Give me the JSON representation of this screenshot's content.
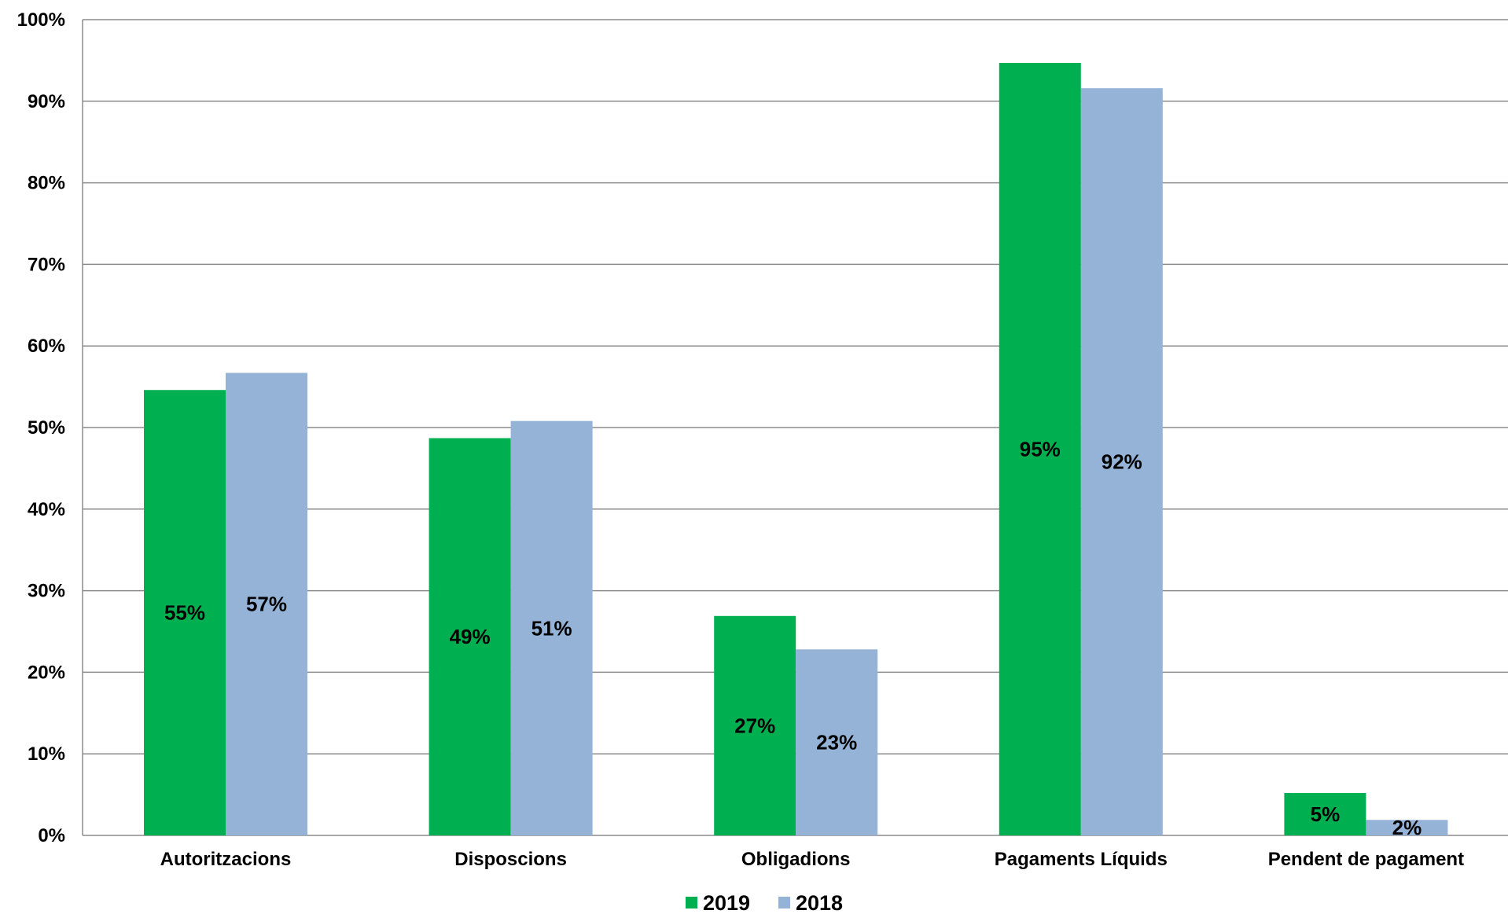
{
  "chart_data": {
    "type": "bar",
    "title": "",
    "xlabel": "",
    "ylabel": "",
    "categories": [
      "Autoritzacions",
      "Disposcions",
      "Obligadions",
      "Pagaments Líquids",
      "Pendent de pagament"
    ],
    "series": [
      {
        "name": "2019",
        "color": "#00b050",
        "values": [
          54.6,
          48.7,
          26.9,
          94.7,
          5.2
        ],
        "labels": [
          "55%",
          "49%",
          "27%",
          "95%",
          "5%"
        ]
      },
      {
        "name": "2018",
        "color": "#95b3d7",
        "values": [
          56.7,
          50.8,
          22.8,
          91.6,
          1.9
        ],
        "labels": [
          "57%",
          "51%",
          "23%",
          "92%",
          "2%"
        ]
      }
    ],
    "ylim": [
      0,
      100
    ],
    "yticks": [
      0,
      10,
      20,
      30,
      40,
      50,
      60,
      70,
      80,
      90,
      100
    ],
    "ytick_labels": [
      "0%",
      "10%",
      "20%",
      "30%",
      "40%",
      "50%",
      "60%",
      "70%",
      "80%",
      "90%",
      "100%"
    ],
    "grid": true,
    "legend": "bottom-center"
  }
}
